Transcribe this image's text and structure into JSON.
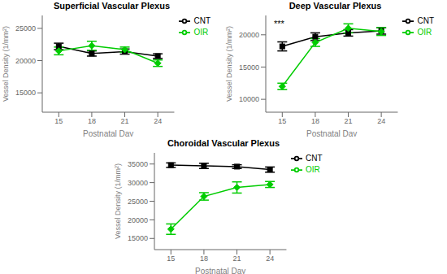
{
  "chart_data": [
    {
      "type": "line",
      "title": "Superficial Vascular Plexus",
      "x": [
        15,
        18,
        21,
        24
      ],
      "xlabel": "Postnatal Day",
      "ylabel": "Vessel Density (1/mm²)",
      "xlim": [
        13.5,
        25.5
      ],
      "xticks": [
        15,
        18,
        21,
        24
      ],
      "ylim": [
        12000,
        27000
      ],
      "yticks": [
        15000,
        20000,
        25000
      ],
      "legend": "upper right",
      "series": [
        {
          "name": "CNT",
          "color": "#000000",
          "marker": "square",
          "values": [
            22200,
            21100,
            21400,
            20700
          ],
          "errors": [
            500,
            400,
            400,
            350
          ]
        },
        {
          "name": "OIR",
          "color": "#00cc00",
          "marker": "diamond",
          "values": [
            21500,
            22300,
            21700,
            19600
          ],
          "errors": [
            600,
            700,
            400,
            500
          ]
        }
      ]
    },
    {
      "type": "line",
      "title": "Deep Vascular Plexus",
      "x": [
        15,
        18,
        21,
        24
      ],
      "xlabel": "Postnatal Day",
      "ylabel": "Vessel Density (1/mm²)",
      "xlim": [
        13.5,
        25.5
      ],
      "xticks": [
        15,
        18,
        21,
        24
      ],
      "ylim": [
        8000,
        23000
      ],
      "yticks": [
        10000,
        15000,
        20000
      ],
      "legend": "upper right",
      "annotation": "***",
      "series": [
        {
          "name": "CNT",
          "color": "#000000",
          "marker": "square",
          "values": [
            18200,
            19700,
            20300,
            20600
          ],
          "errors": [
            700,
            600,
            500,
            500
          ]
        },
        {
          "name": "OIR",
          "color": "#00cc00",
          "marker": "diamond",
          "values": [
            12000,
            18800,
            21000,
            20500
          ],
          "errors": [
            500,
            600,
            700,
            600
          ]
        }
      ]
    },
    {
      "type": "line",
      "title": "Choroidal Vascular Plexus",
      "x": [
        15,
        18,
        21,
        24
      ],
      "xlabel": "Postnatal Day",
      "ylabel": "Vessel Density (1/mm²)",
      "xlim": [
        13.5,
        25.5
      ],
      "xticks": [
        15,
        18,
        21,
        24
      ],
      "ylim": [
        12000,
        38000
      ],
      "yticks": [
        15000,
        20000,
        25000,
        30000,
        35000
      ],
      "legend": "upper right",
      "series": [
        {
          "name": "CNT",
          "color": "#000000",
          "marker": "square",
          "values": [
            34700,
            34500,
            34300,
            33500
          ],
          "errors": [
            600,
            700,
            500,
            700
          ]
        },
        {
          "name": "OIR",
          "color": "#00cc00",
          "marker": "diamond",
          "values": [
            17500,
            26300,
            28700,
            29500
          ],
          "errors": [
            1400,
            1000,
            1500,
            800
          ]
        }
      ]
    }
  ]
}
